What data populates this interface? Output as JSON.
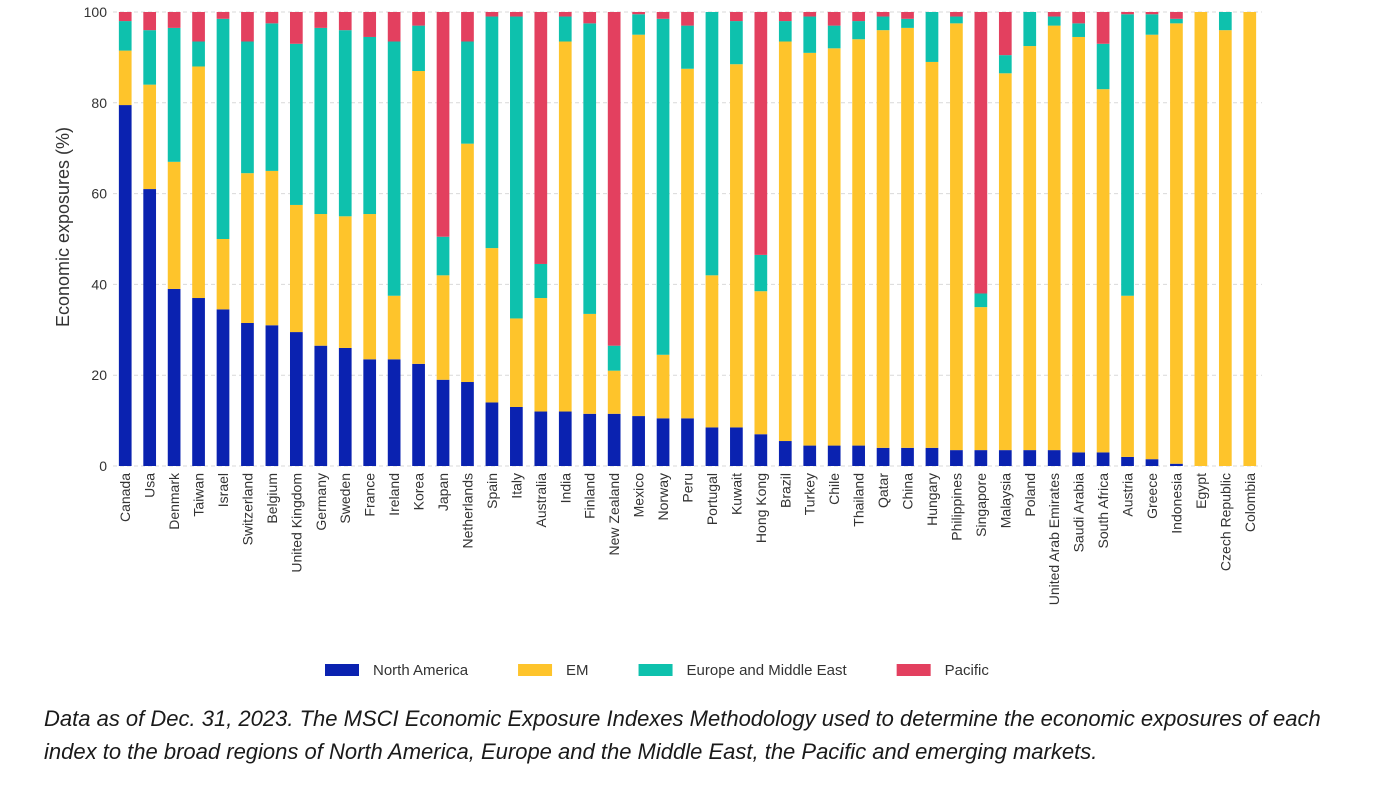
{
  "caption": "Data as of Dec. 31, 2023. The MSCI Economic Exposure Indexes Methodology used to determine the economic exposures of each index to the broad regions of North America, Europe and the Middle East, the Pacific and emerging markets.",
  "chart_data": {
    "type": "bar",
    "stacked": true,
    "title": "",
    "xlabel": "",
    "ylabel": "Economic exposures (%)",
    "ylim": [
      0,
      100
    ],
    "yticks": [
      0,
      20,
      40,
      60,
      80,
      100
    ],
    "grid": true,
    "legend_position": "bottom",
    "categories": [
      "Canada",
      "Usa",
      "Denmark",
      "Taiwan",
      "Israel",
      "Switzerland",
      "Belgium",
      "United Kingdom",
      "Germany",
      "Sweden",
      "France",
      "Ireland",
      "Korea",
      "Japan",
      "Netherlands",
      "Spain",
      "Italy",
      "Australia",
      "India",
      "Finland",
      "New Zealand",
      "Mexico",
      "Norway",
      "Peru",
      "Portugal",
      "Kuwait",
      "Hong Kong",
      "Brazil",
      "Turkey",
      "Chile",
      "Thailand",
      "Qatar",
      "China",
      "Hungary",
      "Philippines",
      "Singapore",
      "Malaysia",
      "Poland",
      "United Arab Emirates",
      "Saudi Arabia",
      "South Africa",
      "Austria",
      "Greece",
      "Indonesia",
      "Egypt",
      "Czech Republic",
      "Colombia"
    ],
    "series": [
      {
        "name": "North America",
        "color": "#0a22b0",
        "values": [
          79.5,
          61,
          39,
          37,
          34.5,
          31.5,
          31,
          29.5,
          26.5,
          26,
          23.5,
          23.5,
          22.5,
          19,
          18.5,
          14,
          13,
          12,
          12,
          11.5,
          11.5,
          11,
          10.5,
          10.5,
          8.5,
          8.5,
          7,
          5.5,
          4.5,
          4.5,
          4.5,
          4,
          4,
          4,
          3.5,
          3.5,
          3.5,
          3.5,
          3.5,
          3,
          3,
          2,
          1.5,
          0.5,
          0,
          0,
          0
        ]
      },
      {
        "name": "EM",
        "color": "#fec42b",
        "values": [
          12,
          23,
          28,
          51,
          15.5,
          33,
          34,
          28,
          29,
          29,
          32,
          14,
          64.5,
          23,
          52.5,
          34,
          19.5,
          25,
          81.5,
          22,
          9.5,
          84,
          14,
          77,
          33.5,
          80,
          31.5,
          88,
          86.5,
          87.5,
          89.5,
          92,
          92.5,
          85,
          94,
          31.5,
          83,
          89,
          93.5,
          91.5,
          80,
          35.5,
          93.5,
          97,
          100,
          96,
          100
        ]
      },
      {
        "name": "Europe and Middle East",
        "color": "#0ec1ad",
        "values": [
          6.5,
          12,
          29.5,
          5.5,
          48.5,
          29,
          32.5,
          35.5,
          41,
          41,
          39,
          56,
          10,
          8.5,
          22.5,
          51,
          66.5,
          7.5,
          5.5,
          64,
          5.5,
          4.5,
          74,
          9.5,
          58,
          9.5,
          8,
          4.5,
          8,
          5,
          4,
          3,
          2,
          11,
          1.5,
          3,
          4,
          7.5,
          2,
          3,
          10,
          62,
          4.5,
          1,
          0,
          4,
          0
        ]
      },
      {
        "name": "Pacific",
        "color": "#e3405f",
        "values": [
          2,
          4,
          3.5,
          6.5,
          1.5,
          6.5,
          2.5,
          7,
          3.5,
          4,
          5.5,
          6.5,
          3,
          49.5,
          6.5,
          1,
          1,
          55.5,
          1,
          2.5,
          73.5,
          0.5,
          1.5,
          3,
          0,
          2,
          53.5,
          2,
          1,
          3,
          2,
          1,
          1.5,
          0,
          1,
          62,
          9.5,
          0,
          1,
          2.5,
          7,
          0.5,
          0.5,
          1.5,
          0,
          0,
          0
        ]
      }
    ]
  }
}
